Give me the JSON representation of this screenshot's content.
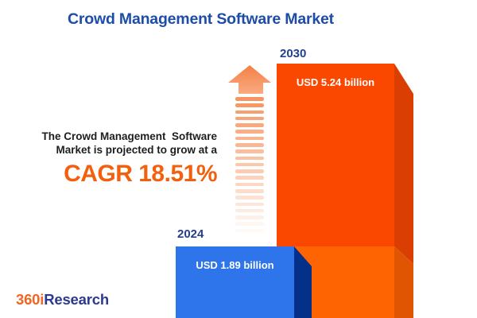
{
  "page": {
    "title": "Crowd Management Software Market"
  },
  "tagline": {
    "text": "The Crowd Management  Software\nMarket is projected to grow at a",
    "cagr": "CAGR 18.51%"
  },
  "chart_data": {
    "type": "bar",
    "title": "Crowd Management Software Market",
    "categories": [
      "2024",
      "2030"
    ],
    "values": [
      1.89,
      5.24
    ],
    "unit": "USD billion",
    "value_labels": [
      "USD 1.89 billion",
      "USD 5.24 billion"
    ],
    "cagr_percent": 18.51,
    "ylim": [
      0,
      5.24
    ],
    "grid": false,
    "legend": "none",
    "colors": {
      "bar_2024_front": "#2e74ea",
      "bar_2024_side": "#04308a",
      "bar_2030_front_upper": "#fb4800",
      "bar_2030_side_upper": "#da3e02",
      "bar_2030_front_lower": "#fe6502",
      "bar_2030_side_lower": "#e05501",
      "title_blue": "#1e4da8",
      "year_label_blue": "#233f8f",
      "cagr_orange": "#f3600d",
      "arrow_orange": "#f68b52"
    }
  },
  "logo": {
    "part1": "360i",
    "part2": "Research"
  }
}
